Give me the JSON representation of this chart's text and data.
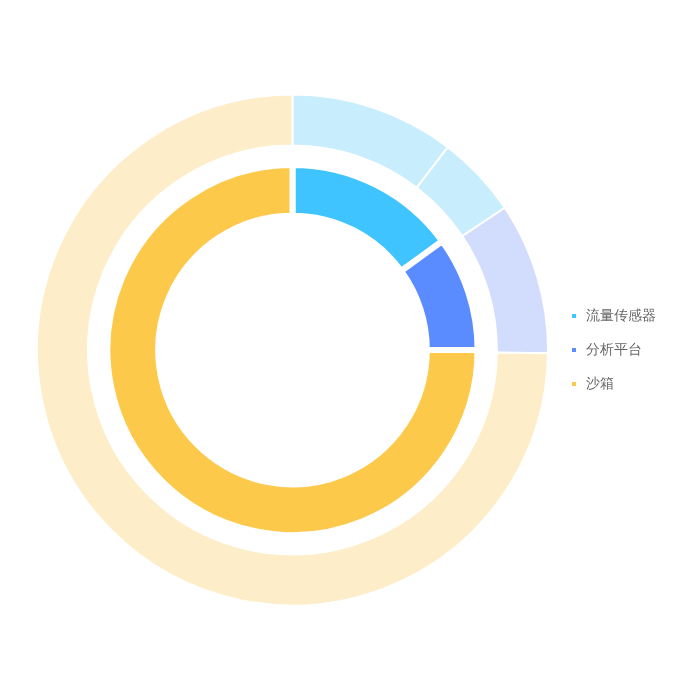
{
  "chart_data": [
    {
      "type": "donut",
      "categories": [
        "流量传感器",
        "分析平台",
        "沙箱"
      ],
      "values": [
        15,
        10,
        75
      ],
      "colors": [
        "#40c4ff",
        "#5b8cff",
        "#fdc94a"
      ],
      "legend": "right"
    },
    {
      "type": "donut",
      "categories": [
        null,
        null,
        null,
        null
      ],
      "values": [
        10.4,
        5.2,
        9.6,
        74.8
      ],
      "colors": [
        "#c8edfd",
        "#c8edfd",
        "#d2dcfd",
        "#fdeec9"
      ]
    }
  ]
}
